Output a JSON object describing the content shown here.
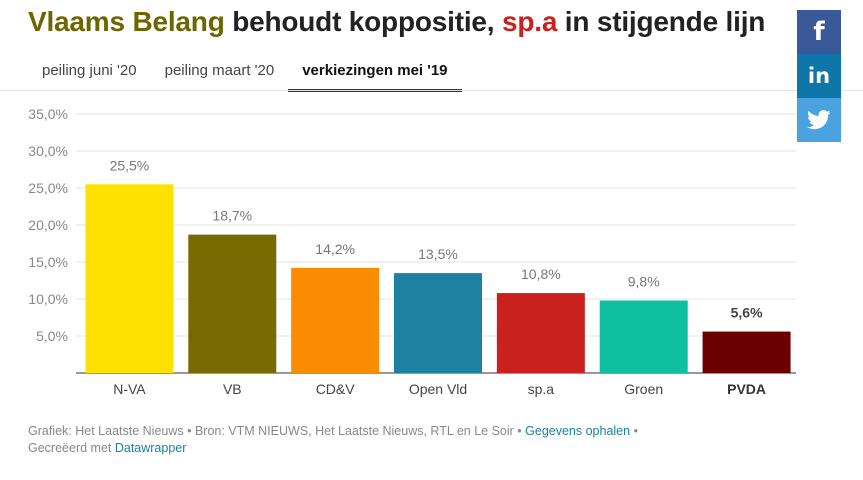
{
  "title": {
    "part1": "Vlaams Belang",
    "part2": " behoudt koppositie, ",
    "part3": "sp.a",
    "part4": " in stijgende lijn",
    "color1": "#6f6500",
    "color3": "#c9211e"
  },
  "tabs": [
    {
      "label": "peiling juni '20",
      "active": false
    },
    {
      "label": "peiling maart '20",
      "active": false
    },
    {
      "label": "verkiezingen mei '19",
      "active": true
    }
  ],
  "social": {
    "facebook_icon": "facebook-icon",
    "linkedin_icon": "linkedin-icon",
    "twitter_icon": "twitter-icon",
    "facebook_glyph": "f",
    "linkedin_glyph": "in"
  },
  "chart_data": {
    "type": "bar",
    "categories": [
      "N-VA",
      "VB",
      "CD&V",
      "Open Vld",
      "sp.a",
      "Groen",
      "PVDA"
    ],
    "values": [
      25.5,
      18.7,
      14.2,
      13.5,
      10.8,
      9.8,
      5.6
    ],
    "value_labels": [
      "25,5%",
      "18,7%",
      "14,2%",
      "13,5%",
      "10,8%",
      "9,8%",
      "5,6%"
    ],
    "colors": [
      "#ffe100",
      "#766a00",
      "#f98c00",
      "#1d81a2",
      "#c9211e",
      "#0fbf9f",
      "#6b0000"
    ],
    "highlight": [
      false,
      false,
      false,
      false,
      false,
      false,
      true
    ],
    "ylim": [
      0,
      35
    ],
    "yticks": [
      5,
      10,
      15,
      20,
      25,
      30,
      35
    ],
    "ytick_labels": [
      "5,0%",
      "10,0%",
      "15,0%",
      "20,0%",
      "25,0%",
      "30,0%",
      "35,0%"
    ],
    "grid": true
  },
  "footer": {
    "line1_text": "Grafiek: Het Laatste Nieuws • Bron: VTM NIEUWS, Het Laatste Nieuws, RTL en Le Soir • ",
    "get_data": "Gegevens ophalen",
    "sep": " •",
    "line2_text": "Gecreëerd met ",
    "datawrapper": "Datawrapper"
  }
}
